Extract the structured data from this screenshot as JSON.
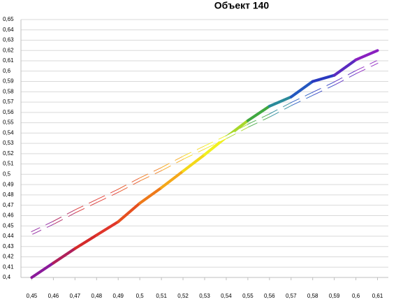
{
  "chart_data": {
    "type": "line",
    "title": "Объект 140",
    "x": [
      0.45,
      0.46,
      0.47,
      0.48,
      0.49,
      0.5,
      0.51,
      0.52,
      0.53,
      0.54,
      0.55,
      0.56,
      0.57,
      0.58,
      0.59,
      0.6,
      0.61
    ],
    "series": [
      {
        "style": "solid",
        "values": [
          0.4,
          0.414,
          0.428,
          0.441,
          0.454,
          0.472,
          0.487,
          0.503,
          0.519,
          0.536,
          0.552,
          0.566,
          0.575,
          0.59,
          0.596,
          0.611,
          0.62
        ]
      },
      {
        "style": "dashed",
        "values": [
          0.443,
          0.453,
          0.464,
          0.474,
          0.484,
          0.495,
          0.505,
          0.516,
          0.526,
          0.536,
          0.547,
          0.557,
          0.568,
          0.578,
          0.588,
          0.599,
          0.609
        ]
      }
    ],
    "segment_colors": [
      "#8b1a9a",
      "#b0205a",
      "#d42a2a",
      "#e0352a",
      "#e6501f",
      "#ee7a1a",
      "#f4a81a",
      "#f4d81a",
      "#f0f020",
      "#a8d82a",
      "#40a840",
      "#2a8a9a",
      "#2458c0",
      "#2a3ac0",
      "#5a2ac0",
      "#8a20c0"
    ],
    "xlim": [
      0.445,
      0.615
    ],
    "ylim": [
      0.4,
      0.65
    ],
    "xticks": [
      {
        "value": 0.45,
        "label": "0,45"
      },
      {
        "value": 0.46,
        "label": "0,46"
      },
      {
        "value": 0.47,
        "label": "0,47"
      },
      {
        "value": 0.48,
        "label": "0,48"
      },
      {
        "value": 0.49,
        "label": "0,49"
      },
      {
        "value": 0.5,
        "label": "0,5"
      },
      {
        "value": 0.51,
        "label": "0,51"
      },
      {
        "value": 0.52,
        "label": "0,52"
      },
      {
        "value": 0.53,
        "label": "0,53"
      },
      {
        "value": 0.54,
        "label": "0,54"
      },
      {
        "value": 0.55,
        "label": "0,55"
      },
      {
        "value": 0.56,
        "label": "0,56"
      },
      {
        "value": 0.57,
        "label": "0,57"
      },
      {
        "value": 0.58,
        "label": "0,58"
      },
      {
        "value": 0.59,
        "label": "0,59"
      },
      {
        "value": 0.6,
        "label": "0,6"
      },
      {
        "value": 0.61,
        "label": "0,61"
      }
    ],
    "yticks": [
      {
        "value": 0.4,
        "label": "0,4"
      },
      {
        "value": 0.41,
        "label": "0,41"
      },
      {
        "value": 0.42,
        "label": "0,42"
      },
      {
        "value": 0.43,
        "label": "0,43"
      },
      {
        "value": 0.44,
        "label": "0,44"
      },
      {
        "value": 0.45,
        "label": "0,45"
      },
      {
        "value": 0.46,
        "label": "0,46"
      },
      {
        "value": 0.47,
        "label": "0,47"
      },
      {
        "value": 0.48,
        "label": "0,48"
      },
      {
        "value": 0.49,
        "label": "0,49"
      },
      {
        "value": 0.5,
        "label": "0,5"
      },
      {
        "value": 0.51,
        "label": "0,51"
      },
      {
        "value": 0.52,
        "label": "0,52"
      },
      {
        "value": 0.53,
        "label": "0,53"
      },
      {
        "value": 0.54,
        "label": "0,54"
      },
      {
        "value": 0.55,
        "label": "0,55"
      },
      {
        "value": 0.56,
        "label": "0,56"
      },
      {
        "value": 0.57,
        "label": "0,57"
      },
      {
        "value": 0.58,
        "label": "0,58"
      },
      {
        "value": 0.59,
        "label": "0,59"
      },
      {
        "value": 0.6,
        "label": "0,6"
      },
      {
        "value": 0.61,
        "label": "0,61"
      },
      {
        "value": 0.62,
        "label": "0,62"
      },
      {
        "value": 0.63,
        "label": "0,63"
      },
      {
        "value": 0.64,
        "label": "0,64"
      },
      {
        "value": 0.65,
        "label": "0,65"
      }
    ],
    "grid": true
  }
}
